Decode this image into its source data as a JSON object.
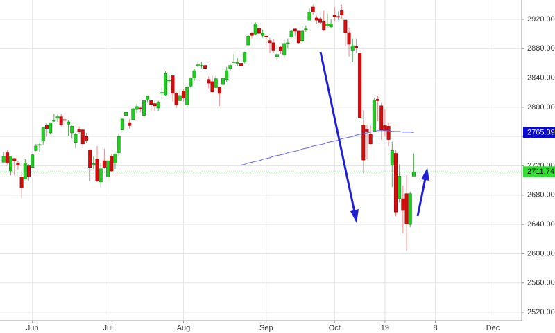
{
  "chart_data": {
    "type": "candlestick",
    "xlim": [
      -1,
      144
    ],
    "xticks": [
      {
        "value": 8,
        "label": "Jun"
      },
      {
        "value": 29,
        "label": "Jul"
      },
      {
        "value": 50,
        "label": "Aug"
      },
      {
        "value": 73,
        "label": "Sep"
      },
      {
        "value": 92,
        "label": "Oct"
      },
      {
        "value": 106,
        "label": "19"
      },
      {
        "value": 120,
        "label": "8"
      },
      {
        "value": 136,
        "label": "Dec"
      }
    ],
    "ylim": [
      2508.7,
      2946.5
    ],
    "yticks": [
      {
        "value": 2520,
        "label": "2520.00"
      },
      {
        "value": 2560,
        "label": "2560.00"
      },
      {
        "value": 2600,
        "label": "2600.00"
      },
      {
        "value": 2640,
        "label": "2640.00"
      },
      {
        "value": 2680,
        "label": "2680.00"
      },
      {
        "value": 2720,
        "label": "2720.00"
      },
      {
        "value": 2760,
        "label": "2760.00"
      },
      {
        "value": 2800,
        "label": "2800.00"
      },
      {
        "value": 2840,
        "label": "2840.00"
      },
      {
        "value": 2880,
        "label": "2880.00"
      },
      {
        "value": 2920,
        "label": "2920.00"
      }
    ],
    "grid": true,
    "up_color": "#22cc22",
    "down_color": "#d40c0c",
    "last_price_color": "#33dd33",
    "open": [
      2725,
      2738,
      2713,
      2730,
      2724,
      2705,
      2702,
      2720,
      2718,
      2741,
      2749,
      2754,
      2775,
      2765,
      2781,
      2785,
      2787,
      2783,
      2777,
      2765,
      2752,
      2770,
      2769,
      2760,
      2742,
      2722,
      2729,
      2698,
      2727,
      2705,
      2733,
      2724,
      2738,
      2769,
      2789,
      2779,
      2783,
      2797,
      2799,
      2789,
      2811,
      2809,
      2805,
      2799,
      2820,
      2817,
      2836,
      2843,
      2819,
      2809,
      2822,
      2803,
      2829,
      2840,
      2856,
      2856,
      2857,
      2838,
      2835,
      2827,
      2827,
      2831,
      2838,
      2853,
      2861,
      2860,
      2860,
      2862,
      2885,
      2901,
      2900,
      2908,
      2898,
      2897,
      2891,
      2888,
      2869,
      2882,
      2871,
      2888,
      2896,
      2907,
      2904,
      2891,
      2906,
      2919,
      2937,
      2922,
      2921,
      2917,
      2911,
      2910,
      2926,
      2924,
      2932,
      2919,
      2902,
      2878,
      2883,
      2874,
      2776,
      2770,
      2763,
      2767,
      2811,
      2802,
      2775,
      2774,
      2721,
      2737,
      2675,
      2675,
      2682,
      2640,
      2706
    ],
    "high": [
      2739,
      2742,
      2733,
      2731,
      2727,
      2711,
      2729,
      2722,
      2736,
      2750,
      2752,
      2773,
      2779,
      2779,
      2791,
      2790,
      2791,
      2789,
      2782,
      2775,
      2765,
      2774,
      2769,
      2765,
      2742,
      2733,
      2747,
      2724,
      2743,
      2727,
      2736,
      2737,
      2764,
      2784,
      2795,
      2784,
      2799,
      2805,
      2801,
      2814,
      2816,
      2810,
      2809,
      2809,
      2829,
      2849,
      2844,
      2843,
      2821,
      2825,
      2825,
      2830,
      2841,
      2853,
      2863,
      2862,
      2863,
      2842,
      2843,
      2843,
      2827,
      2850,
      2855,
      2860,
      2873,
      2867,
      2868,
      2876,
      2898,
      2903,
      2916,
      2912,
      2906,
      2900,
      2895,
      2893,
      2883,
      2884,
      2892,
      2894,
      2906,
      2908,
      2904,
      2912,
      2912,
      2935,
      2940,
      2925,
      2924,
      2932,
      2928,
      2920,
      2937,
      2931,
      2940,
      2919,
      2909,
      2894,
      2894,
      2874,
      2796,
      2776,
      2775,
      2813,
      2816,
      2806,
      2797,
      2779,
      2753,
      2742,
      2722,
      2693,
      2707,
      2685,
      2737
    ],
    "low": [
      2725,
      2722,
      2707,
      2707,
      2715,
      2676,
      2702,
      2700,
      2718,
      2740,
      2739,
      2749,
      2760,
      2763,
      2780,
      2780,
      2774,
      2776,
      2761,
      2757,
      2744,
      2764,
      2744,
      2751,
      2699,
      2716,
      2698,
      2691,
      2716,
      2699,
      2712,
      2716,
      2733,
      2769,
      2786,
      2771,
      2783,
      2792,
      2793,
      2788,
      2806,
      2795,
      2795,
      2795,
      2811,
      2815,
      2832,
      2808,
      2799,
      2809,
      2808,
      2800,
      2827,
      2836,
      2855,
      2853,
      2851,
      2826,
      2820,
      2826,
      2802,
      2831,
      2834,
      2850,
      2861,
      2856,
      2854,
      2860,
      2885,
      2894,
      2898,
      2895,
      2895,
      2885,
      2874,
      2874,
      2864,
      2873,
      2867,
      2880,
      2895,
      2897,
      2886,
      2890,
      2903,
      2919,
      2926,
      2914,
      2914,
      2904,
      2909,
      2908,
      2917,
      2919,
      2921,
      2883,
      2869,
      2862,
      2874,
      2785,
      2710,
      2729,
      2749,
      2767,
      2781,
      2756,
      2760,
      2747,
      2691,
      2651,
      2670,
      2628,
      2604,
      2636,
      2706
    ],
    "close": [
      2733,
      2724,
      2733,
      2727,
      2721,
      2690,
      2724,
      2705,
      2735,
      2747,
      2749,
      2772,
      2771,
      2779,
      2782,
      2787,
      2776,
      2782,
      2780,
      2774,
      2763,
      2767,
      2750,
      2755,
      2718,
      2723,
      2699,
      2716,
      2718,
      2727,
      2713,
      2736,
      2760,
      2784,
      2793,
      2775,
      2798,
      2801,
      2798,
      2809,
      2815,
      2804,
      2802,
      2806,
      2820,
      2846,
      2837,
      2819,
      2803,
      2816,
      2813,
      2827,
      2840,
      2850,
      2858,
      2857,
      2853,
      2833,
      2821,
      2839,
      2819,
      2840,
      2850,
      2857,
      2862,
      2861,
      2856,
      2875,
      2897,
      2898,
      2914,
      2901,
      2901,
      2896,
      2888,
      2878,
      2872,
      2877,
      2887,
      2888,
      2904,
      2904,
      2888,
      2904,
      2907,
      2930,
      2930,
      2919,
      2916,
      2906,
      2914,
      2914,
      2924,
      2923,
      2926,
      2902,
      2886,
      2884,
      2881,
      2786,
      2728,
      2767,
      2750,
      2810,
      2809,
      2769,
      2768,
      2756,
      2741,
      2657,
      2706,
      2659,
      2641,
      2682,
      2711.74
    ],
    "moving_average": {
      "color": "#6666ee",
      "label_color": "#0a0acc",
      "values": [
        null,
        null,
        null,
        null,
        null,
        null,
        null,
        null,
        null,
        null,
        null,
        null,
        null,
        null,
        null,
        null,
        null,
        null,
        null,
        null,
        null,
        null,
        null,
        null,
        null,
        null,
        null,
        null,
        null,
        null,
        null,
        null,
        null,
        null,
        null,
        null,
        null,
        null,
        null,
        null,
        null,
        null,
        null,
        null,
        null,
        null,
        null,
        null,
        null,
        null,
        null,
        null,
        null,
        null,
        null,
        null,
        null,
        null,
        null,
        null,
        null,
        null,
        null,
        null,
        null,
        null,
        2721,
        2722,
        2724,
        2725,
        2726,
        2727,
        2729,
        2730,
        2731,
        2733,
        2734,
        2735,
        2736,
        2738,
        2739,
        2740,
        2741,
        2743,
        2744,
        2745,
        2747,
        2748,
        2749,
        2750,
        2752,
        2753,
        2754,
        2755,
        2757,
        2758,
        2759,
        2760,
        2762,
        2763,
        2764,
        2765,
        2766,
        2767,
        2768,
        2768,
        2768,
        2768,
        2767,
        2767,
        2767,
        2766,
        2766,
        2766,
        2765.39
      ]
    }
  }
}
